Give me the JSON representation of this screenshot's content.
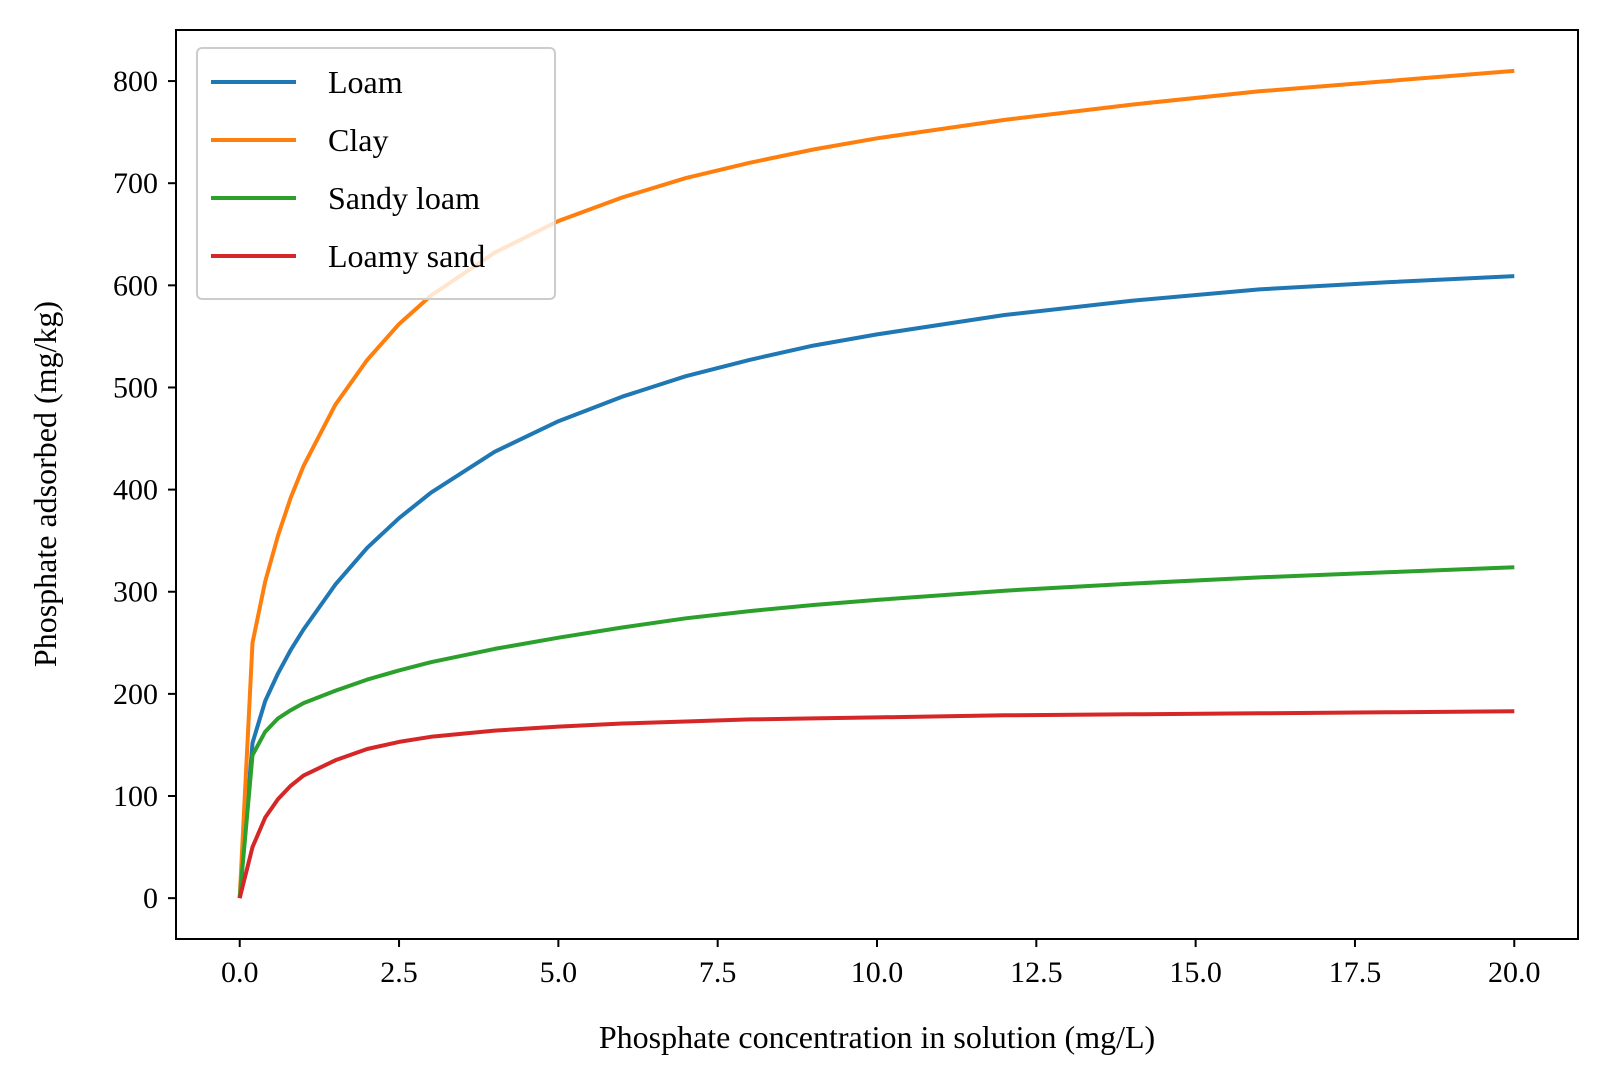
{
  "chart_data": {
    "type": "line",
    "xlabel": "Phosphate concentration in solution (mg/L)",
    "ylabel": "Phosphate adsorbed (mg/kg)",
    "xlim": [
      -1.0,
      21.0
    ],
    "ylim": [
      -40,
      850
    ],
    "x_ticks": [
      0.0,
      2.5,
      5.0,
      7.5,
      10.0,
      12.5,
      15.0,
      17.5,
      20.0
    ],
    "x_tick_labels": [
      "0.0",
      "2.5",
      "5.0",
      "7.5",
      "10.0",
      "12.5",
      "15.0",
      "17.5",
      "20.0"
    ],
    "y_ticks": [
      0,
      100,
      200,
      300,
      400,
      500,
      600,
      700,
      800
    ],
    "y_tick_labels": [
      "0",
      "100",
      "200",
      "300",
      "400",
      "500",
      "600",
      "700",
      "800"
    ],
    "grid": false,
    "legend_position": "top-left",
    "x": [
      0,
      0.2,
      0.4,
      0.6,
      0.8,
      1.0,
      1.5,
      2.0,
      2.5,
      3.0,
      4.0,
      5.0,
      6.0,
      7.0,
      8.0,
      9.0,
      10.0,
      12.0,
      14.0,
      16.0,
      18.0,
      20.0
    ],
    "series": [
      {
        "name": "Loam",
        "color": "#1f77b4",
        "values": [
          0,
          152,
          193,
          220,
          243,
          263,
          307,
          343,
          372,
          397,
          437,
          467,
          491,
          511,
          527,
          541,
          552,
          571,
          585,
          596,
          603,
          609
        ]
      },
      {
        "name": "Clay",
        "color": "#ff7f0e",
        "values": [
          0,
          250,
          310,
          355,
          392,
          423,
          483,
          527,
          562,
          590,
          632,
          663,
          686,
          705,
          720,
          733,
          744,
          762,
          777,
          790,
          800,
          810
        ]
      },
      {
        "name": "Sandy loam",
        "color": "#2ca02c",
        "values": [
          0,
          140,
          163,
          176,
          184,
          191,
          203,
          214,
          223,
          231,
          244,
          255,
          265,
          274,
          281,
          287,
          292,
          301,
          308,
          314,
          319,
          324
        ]
      },
      {
        "name": "Loamy sand",
        "color": "#d62728",
        "values": [
          0,
          50,
          79,
          97,
          110,
          120,
          135,
          146,
          153,
          158,
          164,
          168,
          171,
          173,
          175,
          176,
          177,
          179,
          180,
          181,
          182,
          183
        ]
      }
    ]
  }
}
